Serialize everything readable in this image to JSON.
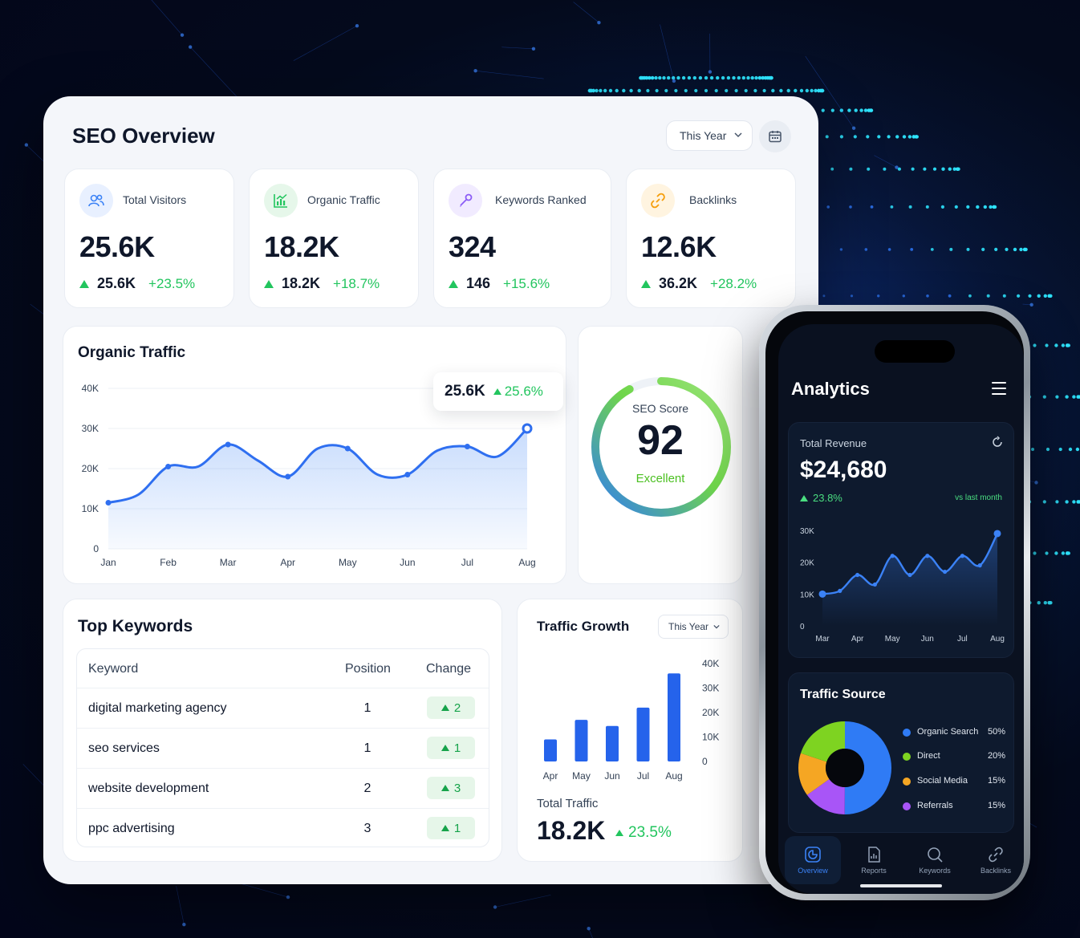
{
  "dashboard": {
    "title": "SEO Overview",
    "period_select": "This Year",
    "stats": [
      {
        "label": "Total Visitors",
        "value": "25.6K",
        "sub_value": "25.6K",
        "change": "+23.5%",
        "icon": "users-icon",
        "color": "#3b82f6"
      },
      {
        "label": "Organic Traffic",
        "value": "18.2K",
        "sub_value": "18.2K",
        "change": "+18.7%",
        "icon": "chart-icon",
        "color": "#22c55e"
      },
      {
        "label": "Keywords Ranked",
        "value": "324",
        "sub_value": "146",
        "change": "+15.6%",
        "icon": "key-icon",
        "color": "#8b5cf6"
      },
      {
        "label": "Backlinks",
        "value": "12.6K",
        "sub_value": "36.2K",
        "change": "+28.2%",
        "icon": "link-icon",
        "color": "#f59e0b"
      }
    ],
    "organic_traffic": {
      "title": "Organic Traffic",
      "tooltip_value": "25.6K",
      "tooltip_change": "25.6%"
    },
    "seo_score": {
      "title": "SEO Score",
      "value": "92",
      "label": "Excellent",
      "score": 92
    },
    "top_keywords": {
      "title": "Top Keywords",
      "columns": [
        "Keyword",
        "Position",
        "Change"
      ],
      "rows": [
        {
          "keyword": "digital marketing agency",
          "position": "1",
          "change": "2"
        },
        {
          "keyword": "seo services",
          "position": "1",
          "change": "1"
        },
        {
          "keyword": "website development",
          "position": "2",
          "change": "3"
        },
        {
          "keyword": "ppc advertising",
          "position": "3",
          "change": "1"
        }
      ]
    },
    "traffic_growth": {
      "title": "Traffic Growth",
      "period_select": "This Year",
      "total_label": "Total Traffic",
      "total_value": "18.2K",
      "total_change": "23.5%"
    }
  },
  "phone": {
    "app_title": "Analytics",
    "revenue": {
      "label": "Total Revenue",
      "value": "$24,680",
      "change": "23.8%",
      "vs": "vs last month"
    },
    "traffic_source": {
      "title": "Traffic Source",
      "items": [
        {
          "name": "Organic Search",
          "value": "50%",
          "pct": 50,
          "color": "#2f7bf5"
        },
        {
          "name": "Direct",
          "value": "20%",
          "pct": 20,
          "color": "#7ed321"
        },
        {
          "name": "Social Media",
          "value": "15%",
          "pct": 15,
          "color": "#f5a623"
        },
        {
          "name": "Referrals",
          "value": "15%",
          "pct": 15,
          "color": "#a855f7"
        }
      ]
    },
    "tabs": [
      {
        "label": "Overview",
        "icon": "overview-icon",
        "active": true
      },
      {
        "label": "Reports",
        "icon": "reports-icon",
        "active": false
      },
      {
        "label": "Keywords",
        "icon": "search-icon",
        "active": false
      },
      {
        "label": "Backlinks",
        "icon": "link-icon",
        "active": false
      }
    ]
  },
  "chart_data": [
    {
      "type": "area",
      "title": "Organic Traffic",
      "categories": [
        "Jan",
        "Feb",
        "Mar",
        "Apr",
        "May",
        "Jun",
        "Jul",
        "Aug"
      ],
      "x": [
        0,
        0.5,
        1,
        1.5,
        2,
        2.5,
        3,
        3.5,
        4,
        4.5,
        5,
        5.5,
        6,
        6.5,
        7
      ],
      "values": [
        11500,
        13500,
        20500,
        20500,
        26000,
        22000,
        18000,
        25000,
        25000,
        18500,
        18500,
        24500,
        25500,
        23000,
        30000
      ],
      "ylim": [
        0,
        40000
      ],
      "yticks": [
        "0",
        "10K",
        "20K",
        "30K",
        "40K"
      ],
      "color": "#2f6ff0"
    },
    {
      "type": "bar",
      "title": "Traffic Growth",
      "categories": [
        "Apr",
        "May",
        "Jun",
        "Jul",
        "Aug"
      ],
      "values": [
        9000,
        17000,
        14500,
        22000,
        36000
      ],
      "ylim": [
        0,
        40000
      ],
      "yticks": [
        "0",
        "10K",
        "20K",
        "30K",
        "40K"
      ],
      "color": "#2563eb"
    },
    {
      "type": "line",
      "title": "Total Revenue",
      "categories": [
        "Mar",
        "Apr",
        "May",
        "Jun",
        "Jul",
        "Aug"
      ],
      "x": [
        0,
        0.5,
        1,
        1.5,
        2,
        2.5,
        3,
        3.5,
        4,
        4.5,
        5
      ],
      "values": [
        10000,
        11000,
        16000,
        13000,
        22000,
        16000,
        22000,
        17000,
        22000,
        19000,
        29000
      ],
      "ylim": [
        0,
        30000
      ],
      "yticks": [
        "0",
        "10K",
        "20K",
        "30K"
      ],
      "color": "#3b82f6"
    },
    {
      "type": "pie",
      "title": "Traffic Source",
      "categories": [
        "Organic Search",
        "Direct",
        "Social Media",
        "Referrals"
      ],
      "values": [
        50,
        20,
        15,
        15
      ]
    }
  ]
}
